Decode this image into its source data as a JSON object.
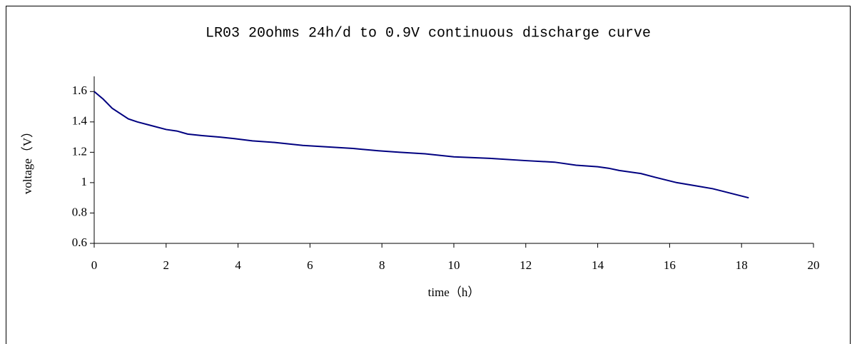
{
  "chart_data": {
    "type": "line",
    "title": "LR03  20ohms 24h/d to 0.9V continuous discharge curve",
    "x_label": "time（h）",
    "y_label": "voltage（V）",
    "x": [
      0,
      0.25,
      0.5,
      0.95,
      1.2,
      1.6,
      2.0,
      2.3,
      2.6,
      3.0,
      3.5,
      3.9,
      4.4,
      5.0,
      5.8,
      6.5,
      7.2,
      7.9,
      8.5,
      9.2,
      10.0,
      11.0,
      12.0,
      12.8,
      13.4,
      14.0,
      14.3,
      14.6,
      15.2,
      15.6,
      16.2,
      16.7,
      17.2,
      17.7,
      18.2
    ],
    "values": [
      1.6,
      1.55,
      1.49,
      1.42,
      1.4,
      1.375,
      1.35,
      1.34,
      1.32,
      1.31,
      1.3,
      1.29,
      1.275,
      1.265,
      1.245,
      1.235,
      1.225,
      1.21,
      1.2,
      1.19,
      1.17,
      1.16,
      1.145,
      1.135,
      1.115,
      1.105,
      1.095,
      1.08,
      1.06,
      1.035,
      1.0,
      0.98,
      0.96,
      0.93,
      0.9
    ],
    "color": "#000080",
    "xlim": [
      0,
      20
    ],
    "xticks": [
      0,
      2,
      4,
      6,
      8,
      10,
      12,
      14,
      16,
      18,
      20
    ],
    "ylim": [
      0.6,
      1.7
    ],
    "yticks": [
      0.6,
      0.8,
      1,
      1.2,
      1.4,
      1.6
    ],
    "grid": false
  }
}
